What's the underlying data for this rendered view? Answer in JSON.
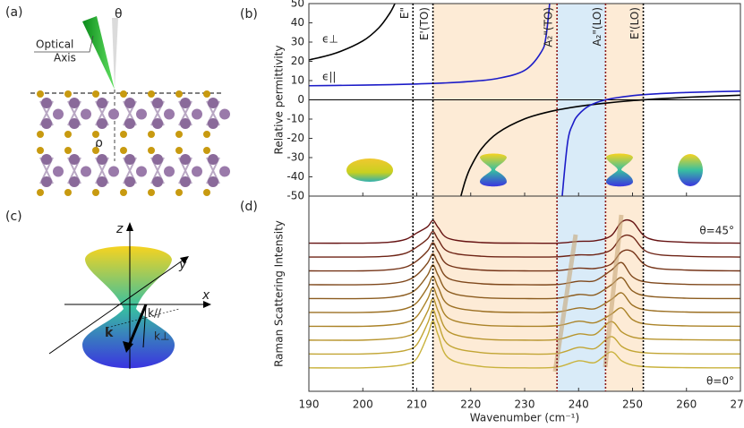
{
  "panels": {
    "a": {
      "label": "(a)",
      "theta": "θ",
      "optical": "Optical",
      "axis": "Axis",
      "rho": "ρ"
    },
    "c": {
      "label": "(c)",
      "z": "z",
      "y": "y",
      "x": "x",
      "k": "k",
      "k_par": "k//",
      "k_perp": "k⊥"
    }
  },
  "chart_data": [
    {
      "type": "line",
      "panel_label": "(b)",
      "ylabel": "Relative permittivity",
      "xlim": [
        190,
        270
      ],
      "xticks": [
        190,
        200,
        210,
        220,
        230,
        240,
        250,
        260,
        270
      ],
      "ylim": [
        -50,
        50
      ],
      "yticks": [
        50,
        40,
        30,
        20,
        10,
        0,
        -10,
        -20,
        -30,
        -40,
        -50
      ],
      "series": [
        {
          "name": "ϵ⊥",
          "color": "#000000",
          "x": [
            190,
            195,
            200,
            203,
            205,
            206,
            213,
            218,
            219,
            220,
            222,
            225,
            230,
            235,
            240,
            245,
            250,
            255,
            260,
            265,
            270
          ],
          "values": [
            20.7,
            24.3,
            30.6,
            37.5,
            45.0,
            50.3,
            null,
            -51.9,
            -42.0,
            -34.9,
            -25.4,
            -17.2,
            -9.9,
            -5.9,
            -3.4,
            -1.7,
            -0.4,
            0.54,
            1.29,
            1.89,
            2.39
          ]
        },
        {
          "name": "ϵ||",
          "color": "#1c1cc8",
          "x": [
            190,
            195,
            200,
            205,
            210,
            215,
            220,
            225,
            230,
            233,
            234,
            235,
            236,
            236.9,
            237,
            238,
            239,
            240,
            242,
            245,
            250,
            255,
            260,
            265,
            270
          ],
          "values": [
            7.33,
            7.47,
            7.65,
            7.9,
            8.24,
            8.74,
            9.56,
            11.1,
            15.3,
            24.5,
            33.6,
            61.1,
            null,
            -55.0,
            -48.9,
            -21.4,
            -12.2,
            -7.64,
            -3.06,
            0,
            2.18,
            3.22,
            3.82,
            4.21,
            4.49
          ]
        }
      ]
    },
    {
      "type": "line",
      "panel_label": "(d)",
      "xlabel": "Wavenumber (cm⁻¹)",
      "ylabel": "Raman Scattering Intensity",
      "xlim": [
        190,
        270
      ],
      "xticks": [
        190,
        200,
        210,
        220,
        230,
        240,
        250,
        260,
        270
      ],
      "ylim": [
        0,
        100
      ],
      "annotations": {
        "top": "θ=45°",
        "bottom": "θ=0°"
      },
      "x": [
        190,
        200,
        205,
        208,
        210,
        212,
        213,
        214,
        216,
        222,
        230,
        236,
        240,
        243,
        246,
        248,
        250,
        253,
        260,
        270
      ],
      "series": [
        {
          "color": "#c9b23c",
          "values": [
            12,
            12,
            12.7,
            13.9,
            16.8,
            28.6,
            36,
            28.6,
            16.8,
            12.7,
            12,
            12.4,
            15.6,
            14.7,
            20.2,
            15.6,
            13.4,
            12.5,
            12.1,
            12
          ]
        },
        {
          "color": "#c2a534",
          "values": [
            19.1,
            19.1,
            19.8,
            21.0,
            23.9,
            34.8,
            41.7,
            34.7,
            23.6,
            19.8,
            19.1,
            19.4,
            22.5,
            21.9,
            28.0,
            23.0,
            20.6,
            19.6,
            19.2,
            19.1
          ]
        },
        {
          "color": "#b8952e",
          "values": [
            26.2,
            26.2,
            26.9,
            28.1,
            31.0,
            40.9,
            47.5,
            40.8,
            30.4,
            26.8,
            26.2,
            26.5,
            29.4,
            29.1,
            35.7,
            30.4,
            27.8,
            26.8,
            26.4,
            26.2
          ]
        },
        {
          "color": "#ab8328",
          "values": [
            33.3,
            33.3,
            34.0,
            35.3,
            38.3,
            47.2,
            53.2,
            47.0,
            37.3,
            33.9,
            33.3,
            33.6,
            35.9,
            35.1,
            39.4,
            42.7,
            36.7,
            34.3,
            33.5,
            33.3
          ]
        },
        {
          "color": "#9c7023",
          "values": [
            40.4,
            40.4,
            41.0,
            42.4,
            45.4,
            53.3,
            58.9,
            53.1,
            44.1,
            41.0,
            40.4,
            40.6,
            42.7,
            42.3,
            46.9,
            50.4,
            44.1,
            41.5,
            40.6,
            40.4
          ]
        },
        {
          "color": "#8c5c1f",
          "values": [
            47.5,
            47.5,
            48.1,
            49.5,
            52.5,
            59.5,
            64.7,
            59.2,
            50.9,
            48.0,
            47.5,
            47.7,
            49.6,
            49.4,
            54.4,
            58.2,
            51.4,
            48.7,
            47.7,
            47.5
          ]
        },
        {
          "color": "#7f481c",
          "values": [
            54.6,
            54.6,
            55.2,
            56.6,
            59.6,
            65.7,
            70.4,
            65.4,
            57.7,
            55.1,
            54.6,
            54.7,
            56.4,
            56.6,
            61.9,
            65.9,
            58.7,
            55.8,
            54.8,
            54.6
          ]
        },
        {
          "color": "#763519",
          "values": [
            61.7,
            61.7,
            62.3,
            63.7,
            66.8,
            71.9,
            76.1,
            71.5,
            64.5,
            62.1,
            61.7,
            61.8,
            63.1,
            62.9,
            65.1,
            71.5,
            71.5,
            63.9,
            62.1,
            61.7
          ]
        },
        {
          "color": "#6e2416",
          "values": [
            68.8,
            68.8,
            69.3,
            70.8,
            73.9,
            78.1,
            81.9,
            77.6,
            71.4,
            69.2,
            68.8,
            68.9,
            69.9,
            70.0,
            72.4,
            79.1,
            79.1,
            71.1,
            69.2,
            68.8
          ]
        },
        {
          "color": "#661313",
          "values": [
            75.9,
            75.9,
            76.4,
            77.9,
            81.1,
            84.3,
            87.6,
            83.8,
            78.2,
            76.2,
            75.9,
            75.9,
            76.8,
            77.1,
            79.6,
            86.8,
            86.8,
            78.3,
            76.3,
            75.9
          ]
        }
      ]
    }
  ],
  "bands": [
    {
      "from": 213,
      "to": 236,
      "color": "#fdebd6"
    },
    {
      "from": 236,
      "to": 245,
      "color": "#d9ebf8"
    },
    {
      "from": 245,
      "to": 252,
      "color": "#fdebd6"
    }
  ],
  "vlines": [
    {
      "x": 209.3,
      "label": "E\"",
      "color": "#000000"
    },
    {
      "x": 213,
      "label": "E'(TO)",
      "color": "#000000"
    },
    {
      "x": 236,
      "label": "A₂\"(TO)",
      "color": "#8b1a1a"
    },
    {
      "x": 245,
      "label": "A₂\"(LO)",
      "color": "#8b1a1a"
    },
    {
      "x": 252,
      "label": "E'(LO)",
      "color": "#000000"
    }
  ]
}
